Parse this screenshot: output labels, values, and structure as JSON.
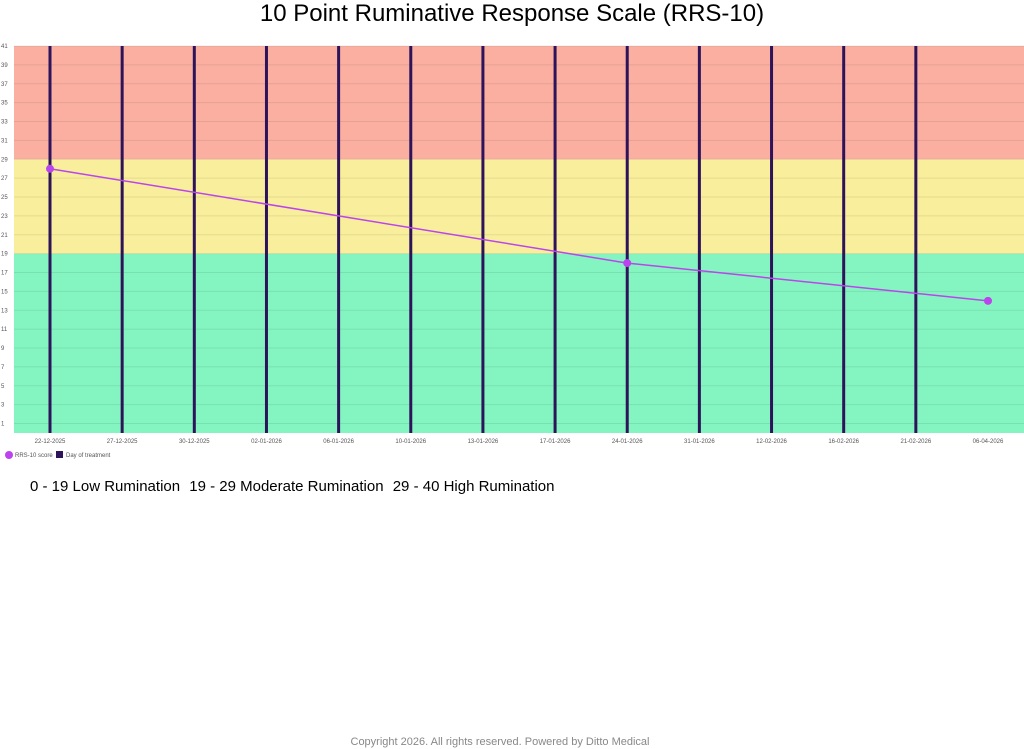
{
  "chart_data": {
    "type": "line",
    "title": "10 Point Ruminative Response Scale (RRS-10)",
    "xlabel": "",
    "ylabel": "",
    "ylim": [
      0,
      41
    ],
    "yticks": [
      1,
      3,
      5,
      7,
      9,
      11,
      13,
      15,
      17,
      19,
      21,
      23,
      25,
      27,
      29,
      31,
      33,
      35,
      37,
      39,
      41
    ],
    "categories": [
      "22-12-2025",
      "27-12-2025",
      "30-12-2025",
      "02-01-2026",
      "06-01-2026",
      "10-01-2026",
      "13-01-2026",
      "17-01-2026",
      "24-01-2026",
      "31-01-2026",
      "12-02-2026",
      "16-02-2026",
      "21-02-2026",
      "06-04-2026"
    ],
    "series": [
      {
        "name": "RRS-10 score",
        "kind": "line",
        "color": "#bb44ee",
        "points": [
          {
            "category": "22-12-2025",
            "value": 28
          },
          {
            "category": "24-01-2026",
            "value": 18
          },
          {
            "category": "06-04-2026",
            "value": 14
          }
        ]
      },
      {
        "name": "Day of treatment",
        "kind": "bar",
        "color": "#2d145a",
        "categories": [
          "22-12-2025",
          "27-12-2025",
          "30-12-2025",
          "02-01-2026",
          "06-01-2026",
          "10-01-2026",
          "13-01-2026",
          "17-01-2026",
          "24-01-2026",
          "31-01-2026",
          "12-02-2026",
          "16-02-2026",
          "21-02-2026"
        ]
      }
    ],
    "bands": [
      {
        "from": 0,
        "to": 19,
        "color": "#84f5c0"
      },
      {
        "from": 19,
        "to": 29,
        "color": "#f9ee9b"
      },
      {
        "from": 29,
        "to": 41,
        "color": "#faafa1"
      }
    ],
    "grid": true,
    "legend_position": "bottom-left"
  },
  "legend": {
    "score_label": "RRS-10 score",
    "treatment_label": "Day of treatment"
  },
  "bands_text": [
    "0 - 19 Low Rumination",
    "19 - 29 Moderate Rumination",
    "29 - 40 High Rumination"
  ],
  "footer": "Copyright  2026. All rights reserved. Powered by Ditto Medical"
}
